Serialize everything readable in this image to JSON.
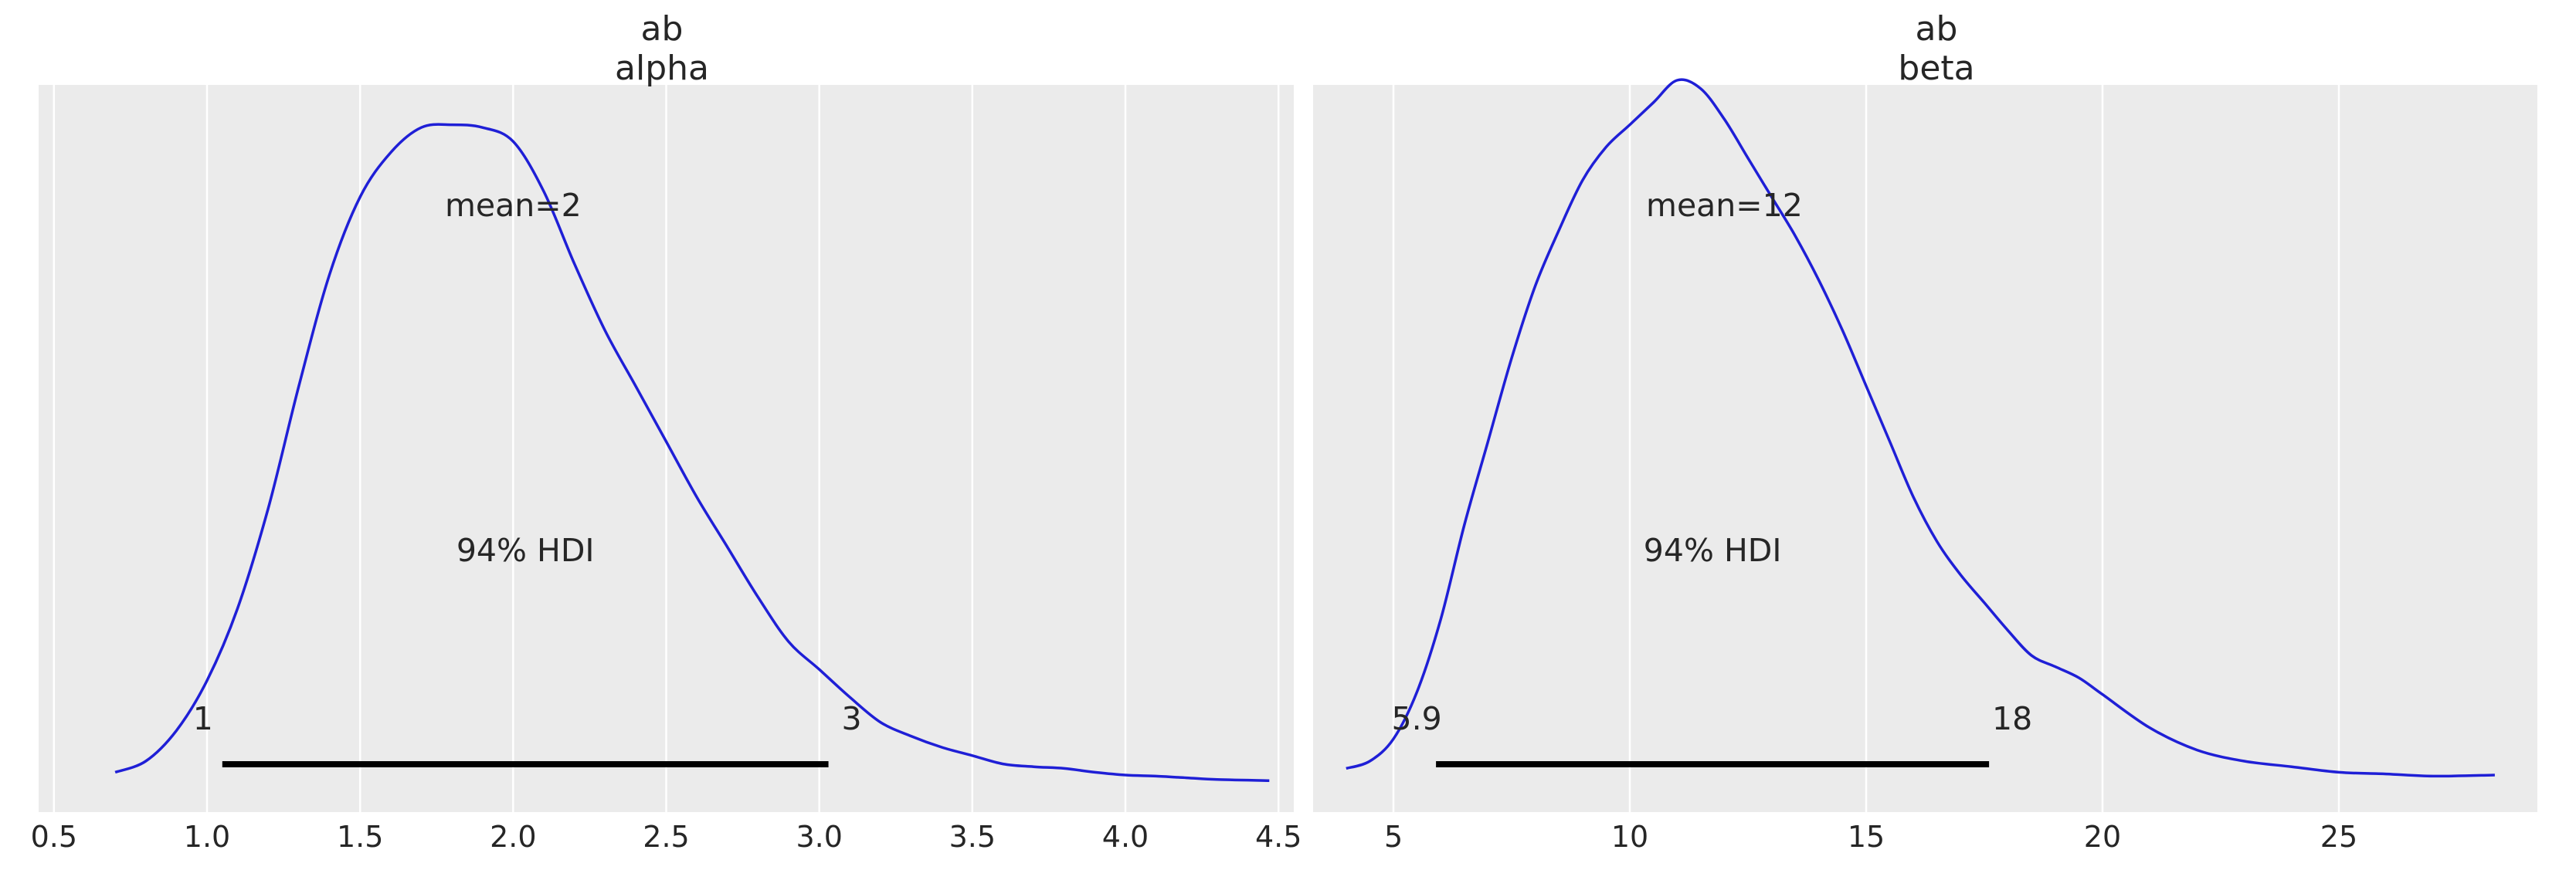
{
  "chart_data": [
    {
      "type": "area",
      "title": "ab",
      "subtitle": "alpha",
      "xlim": [
        0.45,
        4.55
      ],
      "x_ticks": [
        0.5,
        1.0,
        1.5,
        2.0,
        2.5,
        3.0,
        3.5,
        4.0,
        4.5
      ],
      "x_tick_labels": [
        "0.5",
        "1.0",
        "1.5",
        "2.0",
        "2.5",
        "3.0",
        "3.5",
        "4.0",
        "4.5"
      ],
      "grid": true,
      "series": [
        {
          "color": "#1f1fd6",
          "x": [
            0.7,
            0.8,
            0.9,
            1.0,
            1.1,
            1.2,
            1.3,
            1.4,
            1.5,
            1.6,
            1.7,
            1.8,
            1.9,
            2.0,
            2.1,
            2.2,
            2.3,
            2.4,
            2.5,
            2.6,
            2.7,
            2.8,
            2.9,
            3.0,
            3.1,
            3.2,
            3.3,
            3.4,
            3.5,
            3.6,
            3.7,
            3.8,
            3.9,
            4.0,
            4.1,
            4.2,
            4.3,
            4.47
          ],
          "y": [
            0.005,
            0.025,
            0.08,
            0.17,
            0.3,
            0.48,
            0.7,
            0.9,
            1.04,
            1.12,
            1.165,
            1.17,
            1.165,
            1.14,
            1.05,
            0.92,
            0.8,
            0.7,
            0.6,
            0.5,
            0.41,
            0.32,
            0.24,
            0.19,
            0.14,
            0.095,
            0.07,
            0.05,
            0.035,
            0.02,
            0.015,
            0.012,
            0.005,
            0.0,
            -0.002,
            -0.005,
            -0.008,
            -0.01
          ]
        }
      ],
      "mean_label": "mean=2",
      "mean": 2.0,
      "hdi_label": "94% HDI",
      "hdi": [
        1.05,
        3.03
      ],
      "hdi_low_label": "1",
      "hdi_high_label": "3"
    },
    {
      "type": "area",
      "title": "ab",
      "subtitle": "beta",
      "xlim": [
        3.3,
        29.2
      ],
      "x_ticks": [
        5,
        10,
        15,
        20,
        25
      ],
      "x_tick_labels": [
        "5",
        "10",
        "15",
        "20",
        "25"
      ],
      "grid": true,
      "series": [
        {
          "color": "#1f1fd6",
          "x": [
            4.0,
            4.5,
            5.0,
            5.5,
            6.0,
            6.5,
            7.0,
            7.5,
            8.0,
            8.5,
            9.0,
            9.5,
            10.0,
            10.5,
            11.0,
            11.5,
            12.0,
            12.5,
            13.0,
            13.5,
            14.0,
            14.5,
            15.0,
            15.5,
            16.0,
            16.5,
            17.0,
            17.5,
            18.0,
            18.5,
            19.0,
            19.5,
            20.0,
            21.0,
            22.0,
            23.0,
            24.0,
            25.0,
            26.0,
            27.0,
            28.3
          ],
          "y": [
            0.012,
            0.025,
            0.065,
            0.15,
            0.28,
            0.45,
            0.6,
            0.75,
            0.88,
            0.98,
            1.07,
            1.13,
            1.17,
            1.21,
            1.25,
            1.235,
            1.18,
            1.11,
            1.04,
            0.97,
            0.89,
            0.8,
            0.7,
            0.6,
            0.5,
            0.42,
            0.36,
            0.31,
            0.26,
            0.215,
            0.195,
            0.175,
            0.145,
            0.085,
            0.045,
            0.025,
            0.015,
            0.005,
            0.002,
            -0.002,
            0.0
          ]
        }
      ],
      "mean_label": "mean=12",
      "mean": 12,
      "hdi_label": "94% HDI",
      "hdi": [
        5.9,
        17.6
      ],
      "hdi_low_label": "5.9",
      "hdi_high_label": "18"
    }
  ]
}
